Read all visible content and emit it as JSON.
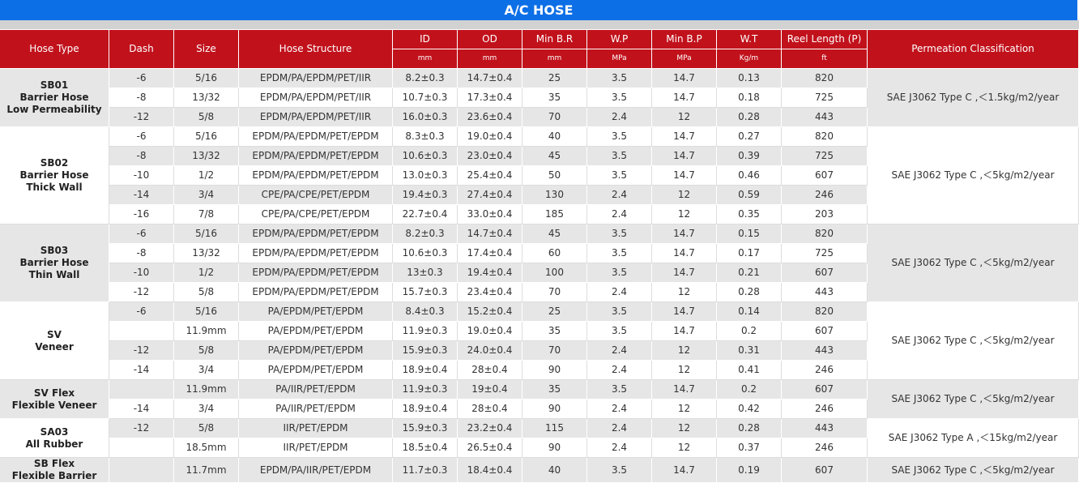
{
  "header": {
    "title": "A/C HOSE"
  },
  "table": {
    "columns": [
      {
        "name": "Hose Type"
      },
      {
        "name": "Dash"
      },
      {
        "name": "Size"
      },
      {
        "name": "Hose Structure"
      },
      {
        "name": "ID",
        "unit": "mm"
      },
      {
        "name": "OD",
        "unit": "mm"
      },
      {
        "name": "Min B.R",
        "unit": "mm"
      },
      {
        "name": "W.P",
        "unit": "MPa"
      },
      {
        "name": "Min B.P",
        "unit": "MPa"
      },
      {
        "name": "W.T",
        "unit": "Kg/m"
      },
      {
        "name": "Reel Length (P)",
        "unit": "ft"
      },
      {
        "name": "Permeation Classification"
      }
    ],
    "groups": [
      {
        "name": [
          "SB01",
          "Barrier Hose",
          "Low Permeability"
        ],
        "permeation": "SAE J3062 Type C ,＜1.5kg/m2/year",
        "rows": [
          [
            "-6",
            "5/16",
            "EPDM/PA/EPDM/PET/IIR",
            "8.2±0.3",
            "14.7±0.4",
            "25",
            "3.5",
            "14.7",
            "0.13",
            "820"
          ],
          [
            "-8",
            "13/32",
            "EPDM/PA/EPDM/PET/IIR",
            "10.7±0.3",
            "17.3±0.4",
            "35",
            "3.5",
            "14.7",
            "0.18",
            "725"
          ],
          [
            "-12",
            "5/8",
            "EPDM/PA/EPDM/PET/IIR",
            "16.0±0.3",
            "23.6±0.4",
            "70",
            "2.4",
            "12",
            "0.28",
            "443"
          ]
        ]
      },
      {
        "name": [
          "SB02",
          "Barrier Hose",
          "Thick Wall"
        ],
        "permeation": "SAE J3062 Type C ,＜5kg/m2/year",
        "rows": [
          [
            "-6",
            "5/16",
            "EPDM/PA/EPDM/PET/EPDM",
            "8.3±0.3",
            "19.0±0.4",
            "40",
            "3.5",
            "14.7",
            "0.27",
            "820"
          ],
          [
            "-8",
            "13/32",
            "EPDM/PA/EPDM/PET/EPDM",
            "10.6±0.3",
            "23.0±0.4",
            "45",
            "3.5",
            "14.7",
            "0.39",
            "725"
          ],
          [
            "-10",
            "1/2",
            "EPDM/PA/EPDM/PET/EPDM",
            "13.0±0.3",
            "25.4±0.4",
            "50",
            "3.5",
            "14.7",
            "0.46",
            "607"
          ],
          [
            "-14",
            "3/4",
            "CPE/PA/CPE/PET/EPDM",
            "19.4±0.3",
            "27.4±0.4",
            "130",
            "2.4",
            "12",
            "0.59",
            "246"
          ],
          [
            "-16",
            "7/8",
            "CPE/PA/CPE/PET/EPDM",
            "22.7±0.4",
            "33.0±0.4",
            "185",
            "2.4",
            "12",
            "0.35",
            "203"
          ]
        ]
      },
      {
        "name": [
          "SB03",
          "Barrier Hose",
          "Thin Wall"
        ],
        "permeation": "SAE J3062 Type C ,＜5kg/m2/year",
        "rows": [
          [
            "-6",
            "5/16",
            "EPDM/PA/EPDM/PET/EPDM",
            "8.2±0.3",
            "14.7±0.4",
            "45",
            "3.5",
            "14.7",
            "0.15",
            "820"
          ],
          [
            "-8",
            "13/32",
            "EPDM/PA/EPDM/PET/EPDM",
            "10.6±0.3",
            "17.4±0.4",
            "60",
            "3.5",
            "14.7",
            "0.17",
            "725"
          ],
          [
            "-10",
            "1/2",
            "EPDM/PA/EPDM/PET/EPDM",
            "13±0.3",
            "19.4±0.4",
            "100",
            "3.5",
            "14.7",
            "0.21",
            "607"
          ],
          [
            "-12",
            "5/8",
            "EPDM/PA/EPDM/PET/EPDM",
            "15.7±0.3",
            "23.4±0.4",
            "70",
            "2.4",
            "12",
            "0.28",
            "443"
          ]
        ]
      },
      {
        "name": [
          "SV",
          "Veneer"
        ],
        "permeation": "SAE J3062 Type C ,＜5kg/m2/year",
        "rows": [
          [
            "-6",
            "5/16",
            "PA/EPDM/PET/EPDM",
            "8.4±0.3",
            "15.2±0.4",
            "25",
            "3.5",
            "14.7",
            "0.14",
            "820"
          ],
          [
            null,
            "11.9mm",
            "PA/EPDM/PET/EPDM",
            "11.9±0.3",
            "19.0±0.4",
            "35",
            "3.5",
            "14.7",
            "0.2",
            "607"
          ],
          [
            "-12",
            "5/8",
            "PA/EPDM/PET/EPDM",
            "15.9±0.3",
            "24.0±0.4",
            "70",
            "2.4",
            "12",
            "0.31",
            "443"
          ],
          [
            "-14",
            "3/4",
            "PA/EPDM/PET/EPDM",
            "18.9±0.4",
            "28±0.4",
            "90",
            "2.4",
            "12",
            "0.41",
            "246"
          ]
        ]
      },
      {
        "name": [
          "SV Flex",
          "Flexible Veneer"
        ],
        "permeation": "SAE J3062 Type C ,＜5kg/m2/year",
        "rows": [
          [
            null,
            "11.9mm",
            "PA/IIR/PET/EPDM",
            "11.9±0.3",
            "19±0.4",
            "35",
            "3.5",
            "14.7",
            "0.2",
            "607"
          ],
          [
            "-14",
            "3/4",
            "PA/IIR/PET/EPDM",
            "18.9±0.4",
            "28±0.4",
            "90",
            "2.4",
            "12",
            "0.42",
            "246"
          ]
        ]
      },
      {
        "name": [
          "SA03",
          "All Rubber"
        ],
        "permeation": "SAE J3062 Type A ,＜15kg/m2/year",
        "rows": [
          [
            "-12",
            "5/8",
            "IIR/PET/EPDM",
            "15.9±0.3",
            "23.2±0.4",
            "115",
            "2.4",
            "12",
            "0.28",
            "443"
          ],
          [
            null,
            "18.5mm",
            "IIR/PET/EPDM",
            "18.5±0.4",
            "26.5±0.4",
            "90",
            "2.4",
            "12",
            "0.37",
            "246"
          ]
        ]
      },
      {
        "name": [
          "SB Flex",
          "Flexible Barrier"
        ],
        "permeation": "SAE J3062 Type C ,＜5kg/m2/year",
        "rows": [
          [
            null,
            "11.7mm",
            "EPDM/PA/IIR/PET/EPDM",
            "11.7±0.3",
            "18.4±0.4",
            "40",
            "3.5",
            "14.7",
            "0.19",
            "607"
          ]
        ]
      }
    ]
  }
}
